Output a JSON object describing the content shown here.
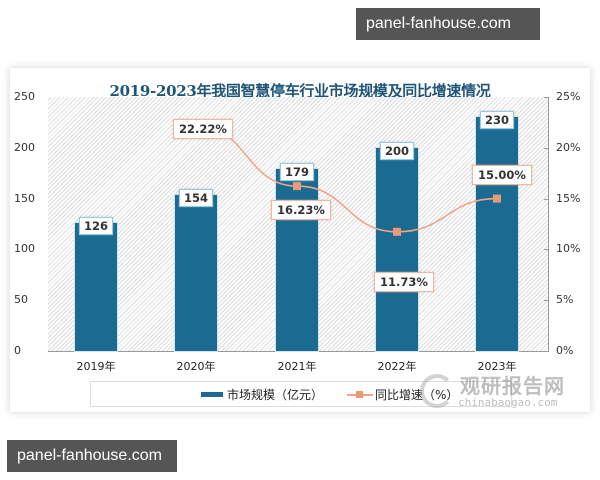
{
  "watermarks": {
    "top": "panel-fanhouse.com",
    "bottom": "panel-fanhouse.com",
    "source_brand": "观研报告网",
    "source_url": "chinabaogao.com"
  },
  "chart_data": {
    "type": "bar+line",
    "title": "2019-2023年我国智慧停车行业市场规模及同比增速情况",
    "categories": [
      "2019年",
      "2020年",
      "2021年",
      "2022年",
      "2023年"
    ],
    "series": [
      {
        "name": "市场规模（亿元）",
        "type": "bar",
        "axis": "left",
        "color": "#1a6a91",
        "values": [
          126,
          154,
          179,
          200,
          230
        ],
        "labels": [
          "126",
          "154",
          "179",
          "200",
          "230"
        ]
      },
      {
        "name": "同比增速（%）",
        "type": "line",
        "axis": "right",
        "color": "#f0a58a",
        "values": [
          null,
          22.22,
          16.23,
          11.73,
          15.0
        ],
        "labels": [
          "",
          "22.22%",
          "16.23%",
          "11.73%",
          "15.00%"
        ]
      }
    ],
    "y_left": {
      "ylim": [
        0,
        250
      ],
      "ticks": [
        "0",
        "50",
        "100",
        "150",
        "200",
        "250"
      ]
    },
    "y_right": {
      "ylim": [
        0,
        25
      ],
      "ticks": [
        "0%",
        "5%",
        "10%",
        "15%",
        "20%",
        "25%"
      ]
    },
    "legend_position": "bottom",
    "grid": false
  }
}
